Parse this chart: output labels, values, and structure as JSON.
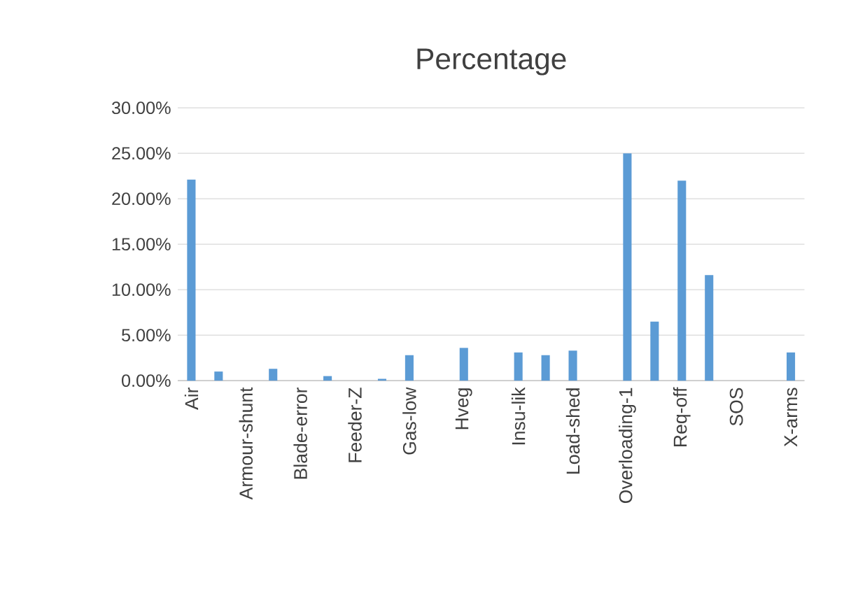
{
  "chart_data": {
    "type": "bar",
    "title": "Percentage",
    "categories": [
      "Air",
      null,
      "Armour-shunt",
      null,
      "Blade-error",
      null,
      "Feeder-Z",
      null,
      "Gas-low",
      null,
      "Hveg",
      null,
      "Insu-lik",
      null,
      "Load-shed",
      null,
      "Overloading-1",
      null,
      "Req-off",
      null,
      "SOS",
      null,
      "X-arms"
    ],
    "values": [
      22.1,
      1.0,
      0,
      1.3,
      0,
      0.5,
      0,
      0.2,
      2.8,
      0,
      3.6,
      0,
      3.1,
      2.8,
      3.3,
      0,
      25.0,
      6.5,
      22.0,
      11.6,
      0,
      0,
      3.1
    ],
    "color": "#5b9bd5",
    "ylim": [
      0,
      30
    ],
    "yticks": [
      {
        "value": 0,
        "label": "0.00%"
      },
      {
        "value": 5,
        "label": "5.00%"
      },
      {
        "value": 10,
        "label": "10.00%"
      },
      {
        "value": 15,
        "label": "15.00%"
      },
      {
        "value": 20,
        "label": "20.00%"
      },
      {
        "value": 25,
        "label": "25.00%"
      },
      {
        "value": 30,
        "label": "30.00%"
      }
    ],
    "grid": "y"
  }
}
